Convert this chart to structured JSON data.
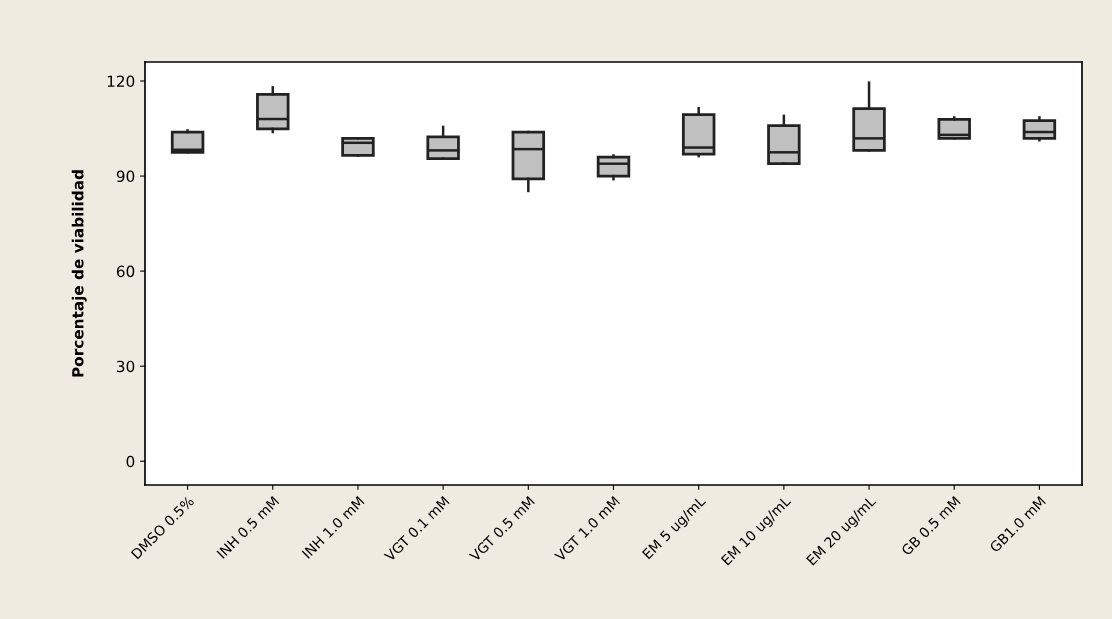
{
  "chart_data": {
    "type": "box",
    "ylabel": "Porcentaje de viabilidad",
    "categories": [
      "DMSO 0.5%",
      "INH 0.5 mM",
      "INH 1.0 mM",
      "VGT 0.1 mM",
      "VGT 0.5 mM",
      "VGT 1.0 mM",
      "EM 5 ug/mL",
      "EM 10 ug/mL",
      "EM 20 ug/mL",
      "GB 0.5 mM",
      "GB1.0 mM"
    ],
    "color": "#c0c0c0",
    "boxes": [
      {
        "low": 97.5,
        "q1": 97.5,
        "median": 98.3,
        "q3": 103.9,
        "high": 104.4
      },
      {
        "low": 103.9,
        "q1": 104.9,
        "median": 108.0,
        "q3": 115.8,
        "high": 118.0
      },
      {
        "low": 96.5,
        "q1": 96.5,
        "median": 100.5,
        "q3": 101.9,
        "high": 101.9
      },
      {
        "low": 95.5,
        "q1": 95.5,
        "median": 98.1,
        "q3": 102.4,
        "high": 105.5
      },
      {
        "low": 85.3,
        "q1": 89.1,
        "median": 98.5,
        "q3": 103.9,
        "high": 103.9
      },
      {
        "low": 89.0,
        "q1": 90.0,
        "median": 93.9,
        "q3": 96.0,
        "high": 96.5
      },
      {
        "low": 96.3,
        "q1": 96.9,
        "median": 99.0,
        "q3": 109.4,
        "high": 111.4
      },
      {
        "low": 93.9,
        "q1": 93.9,
        "median": 97.5,
        "q3": 105.9,
        "high": 109.0
      },
      {
        "low": 98.1,
        "q1": 98.1,
        "median": 101.9,
        "q3": 111.3,
        "high": 119.5
      },
      {
        "low": 101.9,
        "q1": 101.9,
        "median": 103.0,
        "q3": 107.9,
        "high": 108.5
      },
      {
        "low": 101.3,
        "q1": 101.9,
        "median": 103.9,
        "q3": 107.5,
        "high": 108.5
      }
    ],
    "ylim": [
      -7.5,
      126
    ],
    "yticks": [
      0,
      30,
      60,
      90,
      120
    ],
    "grid": false
  }
}
